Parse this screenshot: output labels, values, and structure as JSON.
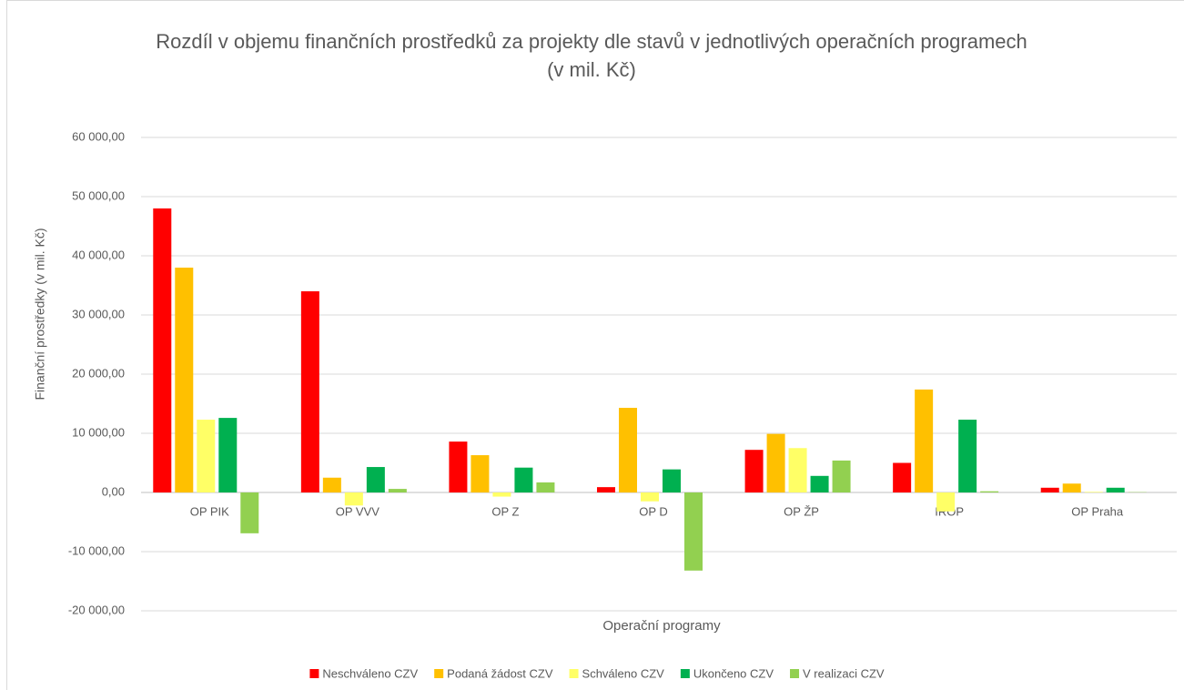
{
  "chart_data": {
    "type": "bar",
    "title": "Rozdíl v objemu finančních prostředků za projekty dle stavů v jednotlivých operačních programech (v mil. Kč)",
    "x_label": "Operační programy",
    "y_label": "Finanční prostředky (v mil. Kč)",
    "categories": [
      "OP PIK",
      "OP VVV",
      "OP Z",
      "OP D",
      "OP ŽP",
      "IROP",
      "OP Praha"
    ],
    "series": [
      {
        "name": "Neschváleno CZV",
        "color": "#ff0000",
        "values": [
          48000,
          34000,
          8600,
          900,
          7200,
          5000,
          800
        ]
      },
      {
        "name": "Podaná žádost CZV",
        "color": "#ffc000",
        "values": [
          38000,
          2500,
          6300,
          14300,
          9900,
          17400,
          1500
        ]
      },
      {
        "name": "Schváleno CZV",
        "color": "#ffff66",
        "values": [
          12300,
          -2200,
          -700,
          -1500,
          7500,
          -3200,
          100
        ]
      },
      {
        "name": "Ukončeno CZV",
        "color": "#00b050",
        "values": [
          12600,
          4300,
          4200,
          3900,
          2800,
          12300,
          800
        ]
      },
      {
        "name": "V realizaci CZV",
        "color": "#92d050",
        "values": [
          -6900,
          600,
          1700,
          -13200,
          5400,
          200,
          50
        ]
      }
    ],
    "ylim": [
      -20000,
      60000
    ],
    "yticks": [
      {
        "value": -20000,
        "label": "-20 000,00"
      },
      {
        "value": -10000,
        "label": "-10 000,00"
      },
      {
        "value": 0,
        "label": "0,00"
      },
      {
        "value": 10000,
        "label": "10 000,00"
      },
      {
        "value": 20000,
        "label": "20 000,00"
      },
      {
        "value": 30000,
        "label": "30 000,00"
      },
      {
        "value": 40000,
        "label": "40 000,00"
      },
      {
        "value": 50000,
        "label": "50 000,00"
      },
      {
        "value": 60000,
        "label": "60 000,00"
      }
    ],
    "grid": true,
    "legend": "bottom"
  }
}
